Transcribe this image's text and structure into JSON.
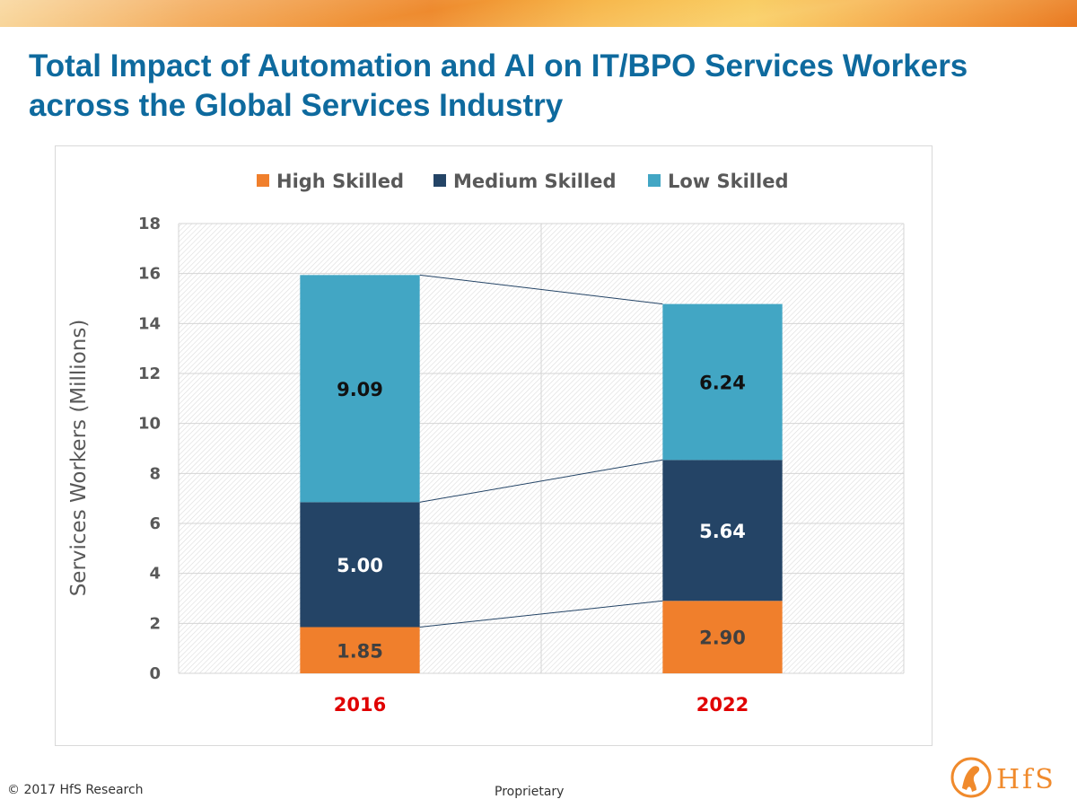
{
  "title": "Total Impact of Automation and AI on IT/BPO Services Workers across the Global Services Industry",
  "footer": {
    "copyright": "© 2017 HfS Research",
    "classification": "Proprietary"
  },
  "logo": {
    "text": "HfS",
    "color": "#f08a2c"
  },
  "chart_data": {
    "type": "bar",
    "stacked": true,
    "categories": [
      "2016",
      "2022"
    ],
    "series": [
      {
        "name": "High Skilled",
        "color": "#f07f2c",
        "values": [
          1.85,
          2.9
        ],
        "labels": [
          "1.85",
          "2.90"
        ],
        "label_color": "#404040"
      },
      {
        "name": "Medium Skilled",
        "color": "#244466",
        "values": [
          5.0,
          5.64
        ],
        "labels": [
          "5.00",
          "5.64"
        ],
        "label_color": "#ffffff"
      },
      {
        "name": "Low Skilled",
        "color": "#42a6c4",
        "values": [
          9.09,
          6.24
        ],
        "labels": [
          "9.09",
          "6.24"
        ],
        "label_color": "#111111"
      }
    ],
    "ylabel": "Services Workers (Millions)",
    "xlabel": "",
    "ylim": [
      0,
      18
    ],
    "yticks": [
      "0",
      "2",
      "4",
      "6",
      "8",
      "10",
      "12",
      "14",
      "16",
      "18"
    ],
    "grid": true,
    "legend_position": "top",
    "category_label_color": "#e00000",
    "series_connector_lines": true
  }
}
